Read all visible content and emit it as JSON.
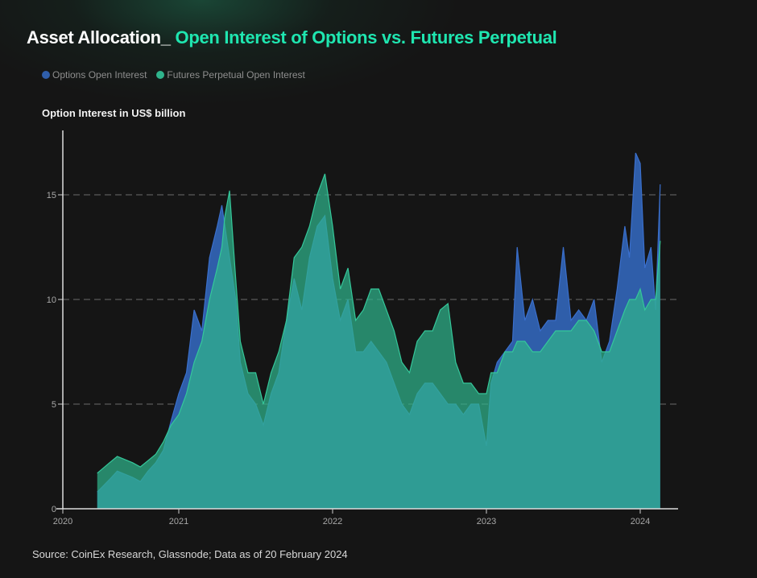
{
  "title_white": "Asset Allocation_",
  "title_green": "Open Interest of Options vs. Futures Perpetual",
  "source": "Source: CoinEx Research, Glassnode; Data as of 20 February 2024",
  "colors": {
    "options": "#2f5eaa",
    "futures": "#2fb48c",
    "title_accent": "#1fe6b0"
  },
  "chart_data": {
    "type": "area",
    "title": "Asset Allocation_ Open Interest of Options vs. Futures Perpetual",
    "ylabel": "Option Interest in US$ billion",
    "xlabel": "",
    "ylim": [
      0,
      18
    ],
    "xlim": [
      2020.23,
      2024.35
    ],
    "y_ticks": [
      0,
      5,
      10,
      15
    ],
    "y_tick_labels": [
      "0",
      "5",
      "10",
      "15"
    ],
    "x_ticks": [
      2020.25,
      2021,
      2022,
      2023,
      2024
    ],
    "x_tick_labels": [
      "2020",
      "2021",
      "2022",
      "2023",
      "2024"
    ],
    "grid": "horizontal dashed",
    "legend": {
      "placement": "top-left",
      "entries": [
        "Options Open Interest",
        "Futures Perpetual Open Interest"
      ]
    },
    "x": [
      2020.47,
      2020.55,
      2020.6,
      2020.7,
      2020.75,
      2020.8,
      2020.85,
      2020.9,
      2020.95,
      2021.0,
      2021.05,
      2021.1,
      2021.15,
      2021.2,
      2021.25,
      2021.28,
      2021.3,
      2021.33,
      2021.37,
      2021.4,
      2021.45,
      2021.5,
      2021.55,
      2021.6,
      2021.65,
      2021.7,
      2021.75,
      2021.8,
      2021.85,
      2021.9,
      2021.95,
      2022.0,
      2022.05,
      2022.1,
      2022.15,
      2022.2,
      2022.25,
      2022.3,
      2022.35,
      2022.4,
      2022.45,
      2022.5,
      2022.55,
      2022.6,
      2022.65,
      2022.7,
      2022.75,
      2022.8,
      2022.85,
      2022.9,
      2022.95,
      2023.0,
      2023.03,
      2023.07,
      2023.12,
      2023.17,
      2023.2,
      2023.25,
      2023.3,
      2023.35,
      2023.4,
      2023.45,
      2023.5,
      2023.55,
      2023.6,
      2023.65,
      2023.7,
      2023.75,
      2023.8,
      2023.85,
      2023.9,
      2023.93,
      2023.97,
      2024.0,
      2024.03,
      2024.07,
      2024.1,
      2024.13
    ],
    "series": [
      {
        "name": "Options Open Interest",
        "values": [
          0.8,
          1.4,
          1.8,
          1.5,
          1.3,
          1.8,
          2.2,
          2.8,
          4.2,
          5.5,
          6.5,
          9.5,
          8.5,
          12.0,
          13.5,
          14.5,
          13.5,
          12.0,
          10.0,
          7.0,
          5.5,
          5.0,
          4.0,
          5.5,
          6.5,
          9.0,
          11.0,
          9.5,
          12.0,
          13.5,
          14.0,
          11.0,
          9.0,
          10.0,
          7.5,
          7.5,
          8.0,
          7.5,
          7.0,
          6.0,
          5.0,
          4.5,
          5.5,
          6.0,
          6.0,
          5.5,
          5.0,
          5.0,
          4.5,
          5.0,
          5.0,
          3.0,
          6.0,
          7.0,
          7.5,
          8.0,
          12.5,
          9.0,
          10.0,
          8.5,
          9.0,
          9.0,
          12.5,
          9.0,
          9.5,
          9.0,
          10.0,
          7.0,
          8.0,
          10.5,
          13.5,
          12.0,
          17.0,
          16.5,
          11.5,
          12.5,
          9.5,
          15.5
        ]
      },
      {
        "name": "Futures Perpetual Open Interest",
        "values": [
          1.7,
          2.2,
          2.5,
          2.2,
          2.0,
          2.3,
          2.6,
          3.2,
          4.0,
          4.5,
          5.5,
          7.0,
          8.0,
          10.0,
          11.5,
          12.5,
          14.0,
          15.2,
          11.0,
          8.0,
          6.5,
          6.5,
          5.0,
          6.5,
          7.5,
          9.0,
          12.0,
          12.5,
          13.5,
          15.0,
          16.0,
          13.5,
          10.5,
          11.5,
          9.0,
          9.5,
          10.5,
          10.5,
          9.5,
          8.5,
          7.0,
          6.5,
          8.0,
          8.5,
          8.5,
          9.5,
          9.8,
          7.0,
          6.0,
          6.0,
          5.5,
          5.5,
          6.5,
          6.5,
          7.5,
          7.5,
          8.0,
          8.0,
          7.5,
          7.5,
          8.0,
          8.5,
          8.5,
          8.5,
          9.0,
          9.0,
          8.5,
          7.5,
          7.5,
          8.5,
          9.5,
          10.0,
          10.0,
          10.5,
          9.5,
          10.0,
          10.0,
          12.8
        ]
      }
    ]
  }
}
